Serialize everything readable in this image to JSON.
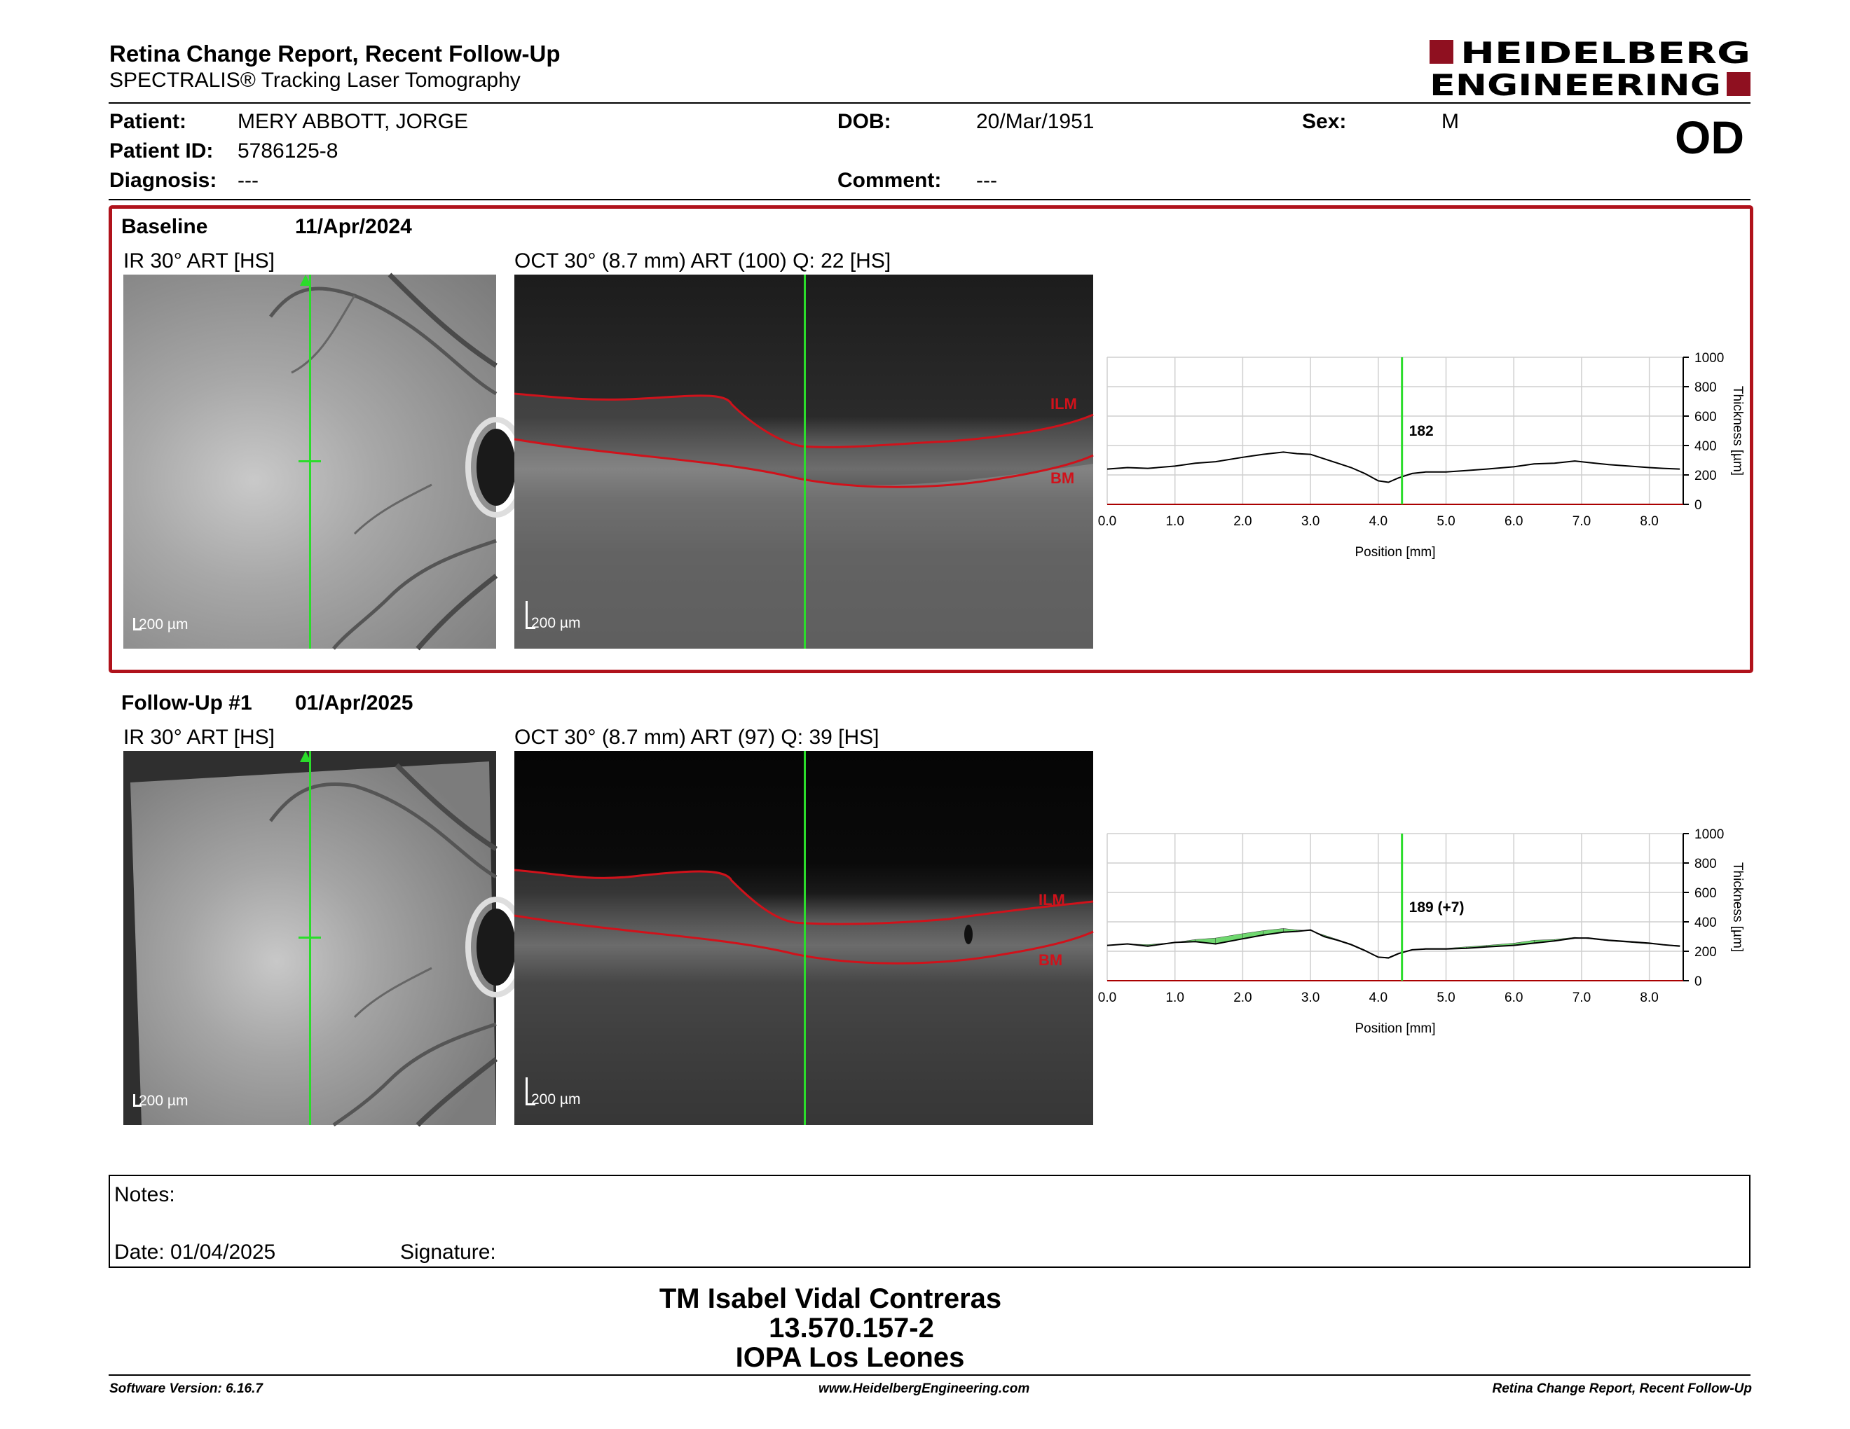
{
  "header": {
    "title": "Retina Change Report, Recent Follow-Up",
    "subtitle": "SPECTRALIS® Tracking Laser Tomography",
    "logo_line1": "HEIDELBERG",
    "logo_line2": "ENGINEERING"
  },
  "patient": {
    "patient_label": "Patient:",
    "patient_value": "MERY ABBOTT, JORGE",
    "id_label": "Patient ID:",
    "id_value": "5786125-8",
    "diagnosis_label": "Diagnosis:",
    "diagnosis_value": "---",
    "dob_label": "DOB:",
    "dob_value": "20/Mar/1951",
    "comment_label": "Comment:",
    "comment_value": "---",
    "sex_label": "Sex:",
    "sex_value": "M",
    "eye": "OD"
  },
  "baseline": {
    "label": "Baseline",
    "date": "11/Apr/2024",
    "ir_title": "IR 30° ART [HS]",
    "oct_title": "OCT 30° (8.7 mm) ART (100) Q: 22 [HS]",
    "scale": "200 µm",
    "ilm": "ILM",
    "bm": "BM",
    "thickness_label": "182"
  },
  "followup": {
    "label": "Follow-Up #1",
    "date": "01/Apr/2025",
    "ir_title": "IR 30° ART [HS]",
    "oct_title": "OCT 30° (8.7 mm) ART (97) Q: 39 [HS]",
    "scale": "200 µm",
    "ilm": "ILM",
    "bm": "BM",
    "thickness_label": "189 (+7)"
  },
  "chart_data": [
    {
      "type": "line",
      "xlabel": "Position [mm]",
      "ylabel": "Thickness [µm]",
      "xlim": [
        0.0,
        8.5
      ],
      "ylim": [
        0,
        1000
      ],
      "xticks": [
        "0.0",
        "1.0",
        "2.0",
        "3.0",
        "4.0",
        "5.0",
        "6.0",
        "7.0",
        "8.0"
      ],
      "yticks": [
        "0",
        "200",
        "400",
        "600",
        "800",
        "1000"
      ],
      "cursor_x": 4.35,
      "cursor_label": "182",
      "series": [
        {
          "x": [
            0.0,
            0.3,
            0.6,
            1.0,
            1.3,
            1.6,
            2.0,
            2.3,
            2.6,
            2.8,
            3.0,
            3.2,
            3.4,
            3.6,
            3.8,
            4.0,
            4.15,
            4.3,
            4.5,
            4.7,
            5.0,
            5.3,
            5.6,
            6.0,
            6.3,
            6.6,
            6.9,
            7.1,
            7.4,
            7.7,
            8.0,
            8.2,
            8.45
          ],
          "y": [
            240,
            250,
            245,
            260,
            280,
            290,
            320,
            340,
            355,
            345,
            340,
            310,
            280,
            250,
            210,
            160,
            150,
            180,
            210,
            220,
            220,
            230,
            240,
            255,
            275,
            280,
            295,
            285,
            270,
            260,
            250,
            245,
            240
          ]
        }
      ]
    },
    {
      "type": "line",
      "xlabel": "Position [mm]",
      "ylabel": "Thickness [µm]",
      "xlim": [
        0.0,
        8.5
      ],
      "ylim": [
        0,
        1000
      ],
      "xticks": [
        "0.0",
        "1.0",
        "2.0",
        "3.0",
        "4.0",
        "5.0",
        "6.0",
        "7.0",
        "8.0"
      ],
      "yticks": [
        "0",
        "200",
        "400",
        "600",
        "800",
        "1000"
      ],
      "cursor_x": 4.35,
      "cursor_label": "189 (+7)",
      "series": [
        {
          "x": [
            0.0,
            0.3,
            0.6,
            1.0,
            1.3,
            1.6,
            2.0,
            2.3,
            2.6,
            2.8,
            3.0,
            3.2,
            3.4,
            3.6,
            3.8,
            4.0,
            4.15,
            4.3,
            4.5,
            4.7,
            5.0,
            5.3,
            5.6,
            6.0,
            6.3,
            6.6,
            6.9,
            7.1,
            7.4,
            7.7,
            8.0,
            8.2,
            8.45
          ],
          "y": [
            240,
            250,
            235,
            260,
            265,
            250,
            285,
            310,
            330,
            335,
            345,
            300,
            275,
            245,
            205,
            160,
            155,
            185,
            210,
            215,
            215,
            220,
            230,
            240,
            255,
            270,
            290,
            290,
            275,
            265,
            255,
            245,
            235
          ]
        }
      ]
    }
  ],
  "notes": {
    "notes_label": "Notes:",
    "date_label": "Date: 01/04/2025",
    "signature_label": "Signature:"
  },
  "signatory": {
    "name": "TM Isabel Vidal Contreras",
    "rut": "13.570.157-2",
    "org": "IOPA Los Leones"
  },
  "footer": {
    "version": "Software Version: 6.16.7",
    "website": "www.HeidelbergEngineering.com",
    "report": "Retina Change Report, Recent Follow-Up"
  },
  "colors": {
    "frame": "#b0121b",
    "cursor": "#2bdc2b",
    "layer_line": "#d0121b",
    "logo": "#8f1020",
    "increase_fill": "#6fd86f"
  }
}
